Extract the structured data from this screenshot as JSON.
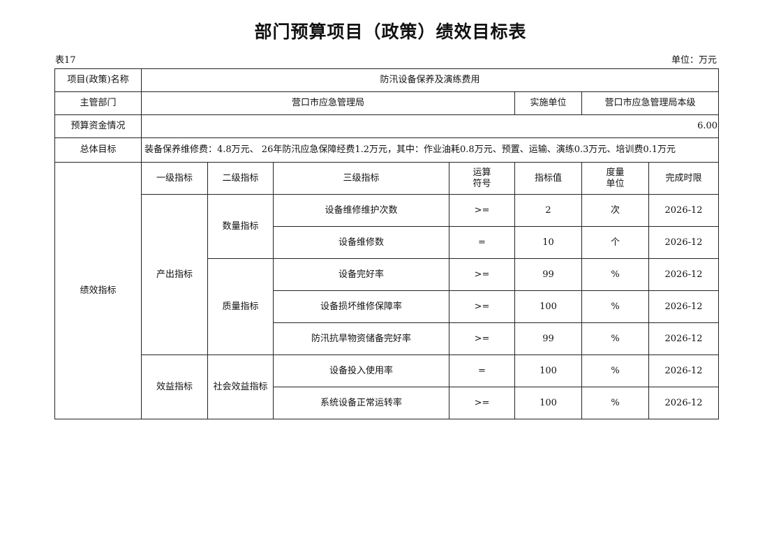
{
  "title": "部门预算项目（政策）绩效目标表",
  "table_no": "表17",
  "unit": "单位：万元",
  "info": {
    "project_name_label": "项目(政策)名称",
    "project_name": "防汛设备保养及演练费用",
    "dept_label": "主管部门",
    "dept": "营口市应急管理局",
    "impl_label": "实施单位",
    "impl": "营口市应急管理局本级",
    "budget_label": "预算资金情况",
    "budget": "6.00",
    "goal_label": "总体目标",
    "goal": "装备保养维修费：4.8万元、 26年防汛应急保障经费1.2万元，其中：作业油耗0.8万元、预置、运输、演练0.3万元、培训费0.1万元"
  },
  "perf": {
    "label": "绩效指标",
    "headers": [
      "一级指标",
      "二级指标",
      "三级指标",
      "运算符号",
      "指标值",
      "度量单位",
      "完成时限"
    ],
    "level1": [
      "产出指标",
      "效益指标"
    ],
    "level2": [
      "数量指标",
      "质量指标",
      "社会效益指标"
    ],
    "rows": [
      {
        "name": "设备维修维护次数",
        "op": ">=",
        "value": "2",
        "unit": "次",
        "deadline": "2026-12"
      },
      {
        "name": "设备维修数",
        "op": "=",
        "value": "10",
        "unit": "个",
        "deadline": "2026-12"
      },
      {
        "name": "设备完好率",
        "op": ">=",
        "value": "99",
        "unit": "%",
        "deadline": "2026-12"
      },
      {
        "name": "设备损坏维修保障率",
        "op": ">=",
        "value": "100",
        "unit": "%",
        "deadline": "2026-12"
      },
      {
        "name": "防汛抗旱物资储备完好率",
        "op": ">=",
        "value": "99",
        "unit": "%",
        "deadline": "2026-12"
      },
      {
        "name": "设备投入使用率",
        "op": "=",
        "value": "100",
        "unit": "%",
        "deadline": "2026-12"
      },
      {
        "name": "系统设备正常运转率",
        "op": ">=",
        "value": "100",
        "unit": "%",
        "deadline": "2026-12"
      }
    ]
  }
}
